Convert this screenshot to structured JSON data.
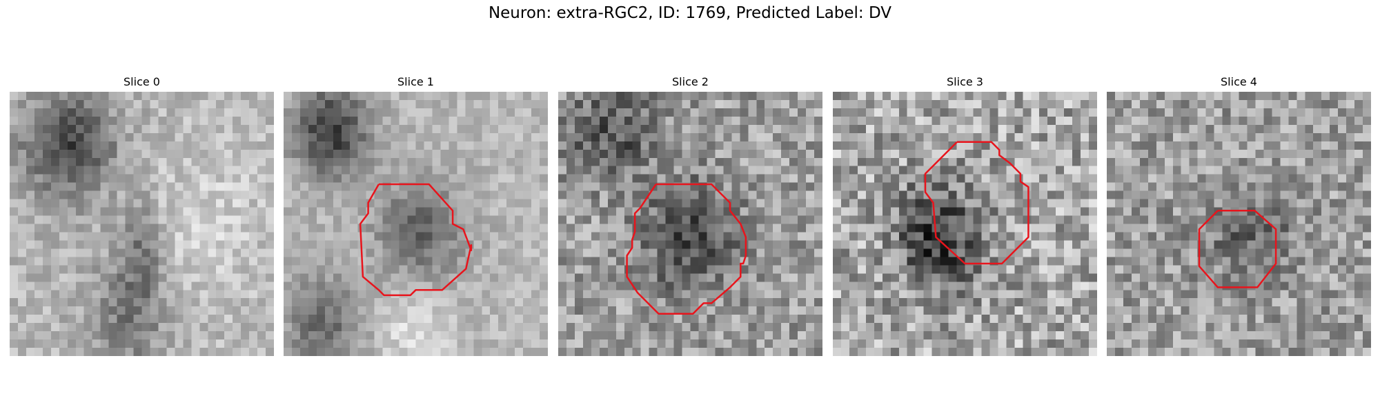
{
  "figure": {
    "title": "Neuron: extra-RGC2, ID: 1769, Predicted Label: DV"
  },
  "colors": {
    "background": "#ffffff",
    "contour": "#e8141c",
    "colormap": "grayscale"
  },
  "panels": [
    {
      "title": "Slice 0",
      "image_description_ref": "grayscale EM patch, dark region upper-left, bright region right",
      "has_contour": false,
      "contour": []
    },
    {
      "title": "Slice 1",
      "has_contour": true,
      "contour": [
        [
          0.36,
          0.35
        ],
        [
          0.55,
          0.35
        ],
        [
          0.64,
          0.45
        ],
        [
          0.64,
          0.5
        ],
        [
          0.68,
          0.52
        ],
        [
          0.71,
          0.6
        ],
        [
          0.71,
          0.58
        ],
        [
          0.69,
          0.67
        ],
        [
          0.6,
          0.75
        ],
        [
          0.5,
          0.75
        ],
        [
          0.48,
          0.77
        ],
        [
          0.38,
          0.77
        ],
        [
          0.36,
          0.75
        ],
        [
          0.3,
          0.7
        ],
        [
          0.29,
          0.5
        ],
        [
          0.32,
          0.46
        ],
        [
          0.32,
          0.42
        ],
        [
          0.36,
          0.35
        ]
      ]
    },
    {
      "title": "Slice 2",
      "has_contour": true,
      "contour": [
        [
          0.37,
          0.35
        ],
        [
          0.58,
          0.35
        ],
        [
          0.65,
          0.42
        ],
        [
          0.65,
          0.45
        ],
        [
          0.69,
          0.5
        ],
        [
          0.71,
          0.55
        ],
        [
          0.71,
          0.62
        ],
        [
          0.7,
          0.65
        ],
        [
          0.69,
          0.65
        ],
        [
          0.69,
          0.7
        ],
        [
          0.65,
          0.74
        ],
        [
          0.58,
          0.8
        ],
        [
          0.55,
          0.8
        ],
        [
          0.54,
          0.81
        ],
        [
          0.51,
          0.84
        ],
        [
          0.38,
          0.84
        ],
        [
          0.3,
          0.76
        ],
        [
          0.26,
          0.7
        ],
        [
          0.26,
          0.62
        ],
        [
          0.28,
          0.59
        ],
        [
          0.28,
          0.56
        ],
        [
          0.29,
          0.53
        ],
        [
          0.29,
          0.46
        ],
        [
          0.31,
          0.44
        ],
        [
          0.37,
          0.35
        ]
      ]
    },
    {
      "title": "Slice 3",
      "has_contour": true,
      "contour": [
        [
          0.47,
          0.19
        ],
        [
          0.6,
          0.19
        ],
        [
          0.63,
          0.22
        ],
        [
          0.63,
          0.24
        ],
        [
          0.67,
          0.27
        ],
        [
          0.71,
          0.31
        ],
        [
          0.71,
          0.34
        ],
        [
          0.74,
          0.36
        ],
        [
          0.74,
          0.55
        ],
        [
          0.67,
          0.62
        ],
        [
          0.64,
          0.65
        ],
        [
          0.5,
          0.65
        ],
        [
          0.39,
          0.55
        ],
        [
          0.38,
          0.42
        ],
        [
          0.35,
          0.38
        ],
        [
          0.35,
          0.31
        ],
        [
          0.47,
          0.19
        ]
      ]
    },
    {
      "title": "Slice 4",
      "has_contour": true,
      "contour": [
        [
          0.42,
          0.45
        ],
        [
          0.56,
          0.45
        ],
        [
          0.64,
          0.52
        ],
        [
          0.64,
          0.65
        ],
        [
          0.57,
          0.74
        ],
        [
          0.42,
          0.74
        ],
        [
          0.35,
          0.66
        ],
        [
          0.35,
          0.52
        ],
        [
          0.42,
          0.45
        ]
      ]
    }
  ]
}
